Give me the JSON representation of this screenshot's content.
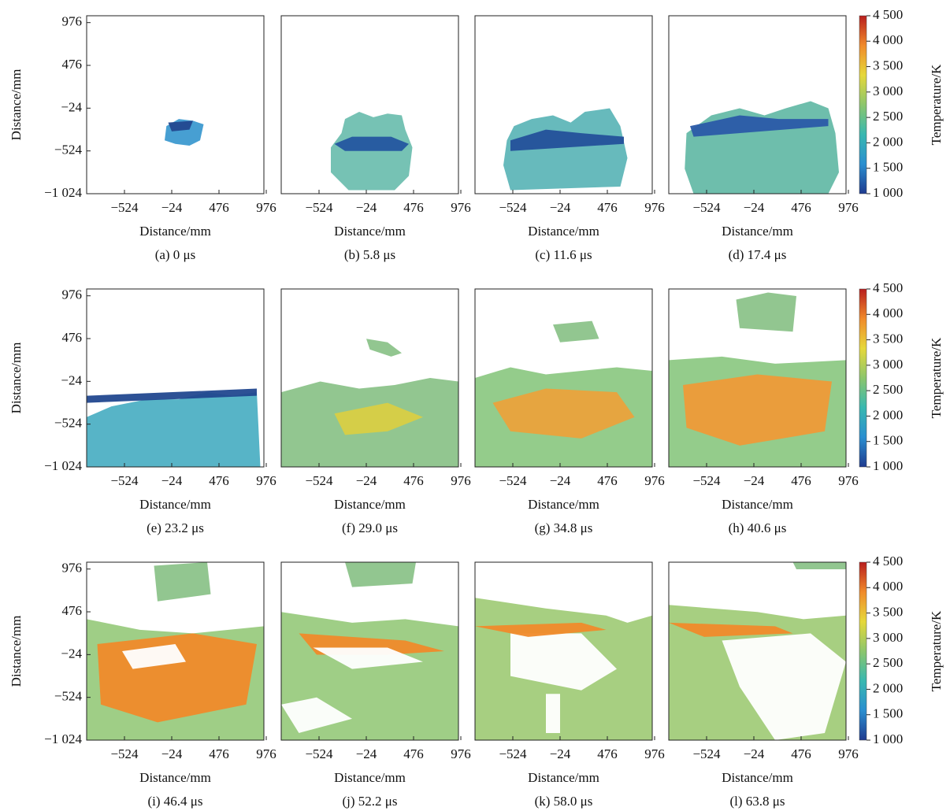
{
  "chart_data": [
    {
      "type": "heatmap",
      "caption": "(a) 0 μs",
      "xlabel": "Distance/mm",
      "ylabel": "Distance/mm",
      "xlim": [
        -924,
        951
      ],
      "xticks": [
        {
          "value": -524,
          "label": "−524"
        },
        {
          "value": -24,
          "label": "−24"
        },
        476,
        976
      ],
      "ylim": [
        -1024,
        1056
      ],
      "yticks": [
        {
          "value": -1024,
          "label": "−1 024"
        },
        {
          "value": -524,
          "label": "−524"
        },
        {
          "value": -24,
          "label": "−24"
        },
        476,
        976
      ]
    },
    {
      "type": "heatmap",
      "caption": "(b) 5.8 μs",
      "xlabel": "Distance/mm",
      "xlim": [
        -924,
        951
      ],
      "xticks": [
        {
          "value": -524,
          "label": "−524"
        },
        {
          "value": -24,
          "label": "−24"
        },
        476,
        976
      ],
      "ylim": [
        -1024,
        1056
      ]
    },
    {
      "type": "heatmap",
      "caption": "(c) 11.6 μs",
      "xlabel": "Distance/mm",
      "xlim": [
        -924,
        951
      ],
      "xticks": [
        {
          "value": -524,
          "label": "−524"
        },
        {
          "value": -24,
          "label": "−24"
        },
        476,
        976
      ],
      "ylim": [
        -1024,
        1056
      ]
    },
    {
      "type": "heatmap",
      "caption": "(d) 17.4 μs",
      "xlabel": "Distance/mm",
      "xlim": [
        -924,
        951
      ],
      "xticks": [
        {
          "value": -524,
          "label": "−524"
        },
        {
          "value": -24,
          "label": "−24"
        },
        476,
        976
      ],
      "ylim": [
        -1024,
        1056
      ],
      "colorbar": {
        "label": "Temperature/K",
        "lim": [
          1000,
          4500
        ],
        "colors": [
          "#1f3b8f",
          "#2a8fd0",
          "#38b8b0",
          "#8cc66c",
          "#e6d83a",
          "#f08a2a",
          "#b81e1e"
        ],
        "ticks": [
          {
            "value": 1000,
            "label": "1 000"
          },
          {
            "value": 1500,
            "label": "1 500"
          },
          {
            "value": 2000,
            "label": "2 000"
          },
          {
            "value": 2500,
            "label": "2 500"
          },
          {
            "value": 3000,
            "label": "3 000"
          },
          {
            "value": 3500,
            "label": "3 500"
          },
          {
            "value": 4000,
            "label": "4 000"
          },
          {
            "value": 4500,
            "label": "4 500"
          }
        ]
      }
    },
    {
      "type": "heatmap",
      "caption": "(e) 23.2 μs",
      "xlabel": "Distance/mm",
      "ylabel": "Distance/mm",
      "xlim": [
        -924,
        951
      ],
      "xticks": [
        {
          "value": -524,
          "label": "−524"
        },
        {
          "value": -24,
          "label": "−24"
        },
        476,
        976
      ],
      "ylim": [
        -1024,
        1056
      ],
      "yticks": [
        {
          "value": -1024,
          "label": "−1 024"
        },
        {
          "value": -524,
          "label": "−524"
        },
        {
          "value": -24,
          "label": "−24"
        },
        476,
        976
      ]
    },
    {
      "type": "heatmap",
      "caption": "(f) 29.0 μs",
      "xlabel": "Distance/mm",
      "xlim": [
        -924,
        951
      ],
      "xticks": [
        {
          "value": -524,
          "label": "−524"
        },
        {
          "value": -24,
          "label": "−24"
        },
        476,
        976
      ],
      "ylim": [
        -1024,
        1056
      ]
    },
    {
      "type": "heatmap",
      "caption": "(g) 34.8 μs",
      "xlabel": "Distance/mm",
      "xlim": [
        -924,
        951
      ],
      "xticks": [
        {
          "value": -524,
          "label": "−524"
        },
        {
          "value": -24,
          "label": "−24"
        },
        476,
        976
      ],
      "ylim": [
        -1024,
        1056
      ]
    },
    {
      "type": "heatmap",
      "caption": "(h) 40.6 μs",
      "xlabel": "Distance/mm",
      "xlim": [
        -924,
        951
      ],
      "xticks": [
        {
          "value": -524,
          "label": "−524"
        },
        {
          "value": -24,
          "label": "−24"
        },
        476,
        976
      ],
      "ylim": [
        -1024,
        1056
      ],
      "colorbar": {
        "label": "Temperature/K",
        "lim": [
          1000,
          4500
        ],
        "colors": [
          "#1f3b8f",
          "#2a8fd0",
          "#38b8b0",
          "#8cc66c",
          "#e6d83a",
          "#f08a2a",
          "#b81e1e"
        ],
        "ticks": [
          {
            "value": 1000,
            "label": "1 000"
          },
          {
            "value": 1500,
            "label": "1 500"
          },
          {
            "value": 2000,
            "label": "2 000"
          },
          {
            "value": 2500,
            "label": "2 500"
          },
          {
            "value": 3000,
            "label": "3 000"
          },
          {
            "value": 3500,
            "label": "3 500"
          },
          {
            "value": 4000,
            "label": "4 000"
          },
          {
            "value": 4500,
            "label": "4 500"
          }
        ]
      }
    },
    {
      "type": "heatmap",
      "caption": "(i) 46.4 μs",
      "xlabel": "Distance/mm",
      "ylabel": "Distance/mm",
      "xlim": [
        -924,
        951
      ],
      "xticks": [
        {
          "value": -524,
          "label": "−524"
        },
        {
          "value": -24,
          "label": "−24"
        },
        476,
        976
      ],
      "ylim": [
        -1024,
        1056
      ],
      "yticks": [
        {
          "value": -1024,
          "label": "−1 024"
        },
        {
          "value": -524,
          "label": "−524"
        },
        {
          "value": -24,
          "label": "−24"
        },
        476,
        976
      ]
    },
    {
      "type": "heatmap",
      "caption": "(j) 52.2 μs",
      "xlabel": "Distance/mm",
      "xlim": [
        -924,
        951
      ],
      "xticks": [
        {
          "value": -524,
          "label": "−524"
        },
        {
          "value": -24,
          "label": "−24"
        },
        476,
        976
      ],
      "ylim": [
        -1024,
        1056
      ]
    },
    {
      "type": "heatmap",
      "caption": "(k) 58.0 μs",
      "xlabel": "Distance/mm",
      "xlim": [
        -924,
        951
      ],
      "xticks": [
        {
          "value": -524,
          "label": "−524"
        },
        {
          "value": -24,
          "label": "−24"
        },
        476,
        976
      ],
      "ylim": [
        -1024,
        1056
      ]
    },
    {
      "type": "heatmap",
      "caption": "(l) 63.8 μs",
      "xlabel": "Distance/mm",
      "xlim": [
        -924,
        951
      ],
      "xticks": [
        {
          "value": -524,
          "label": "−524"
        },
        {
          "value": -24,
          "label": "−24"
        },
        476,
        976
      ],
      "ylim": [
        -1024,
        1056
      ],
      "colorbar": {
        "label": "Temperature/K",
        "lim": [
          1000,
          4500
        ],
        "colors": [
          "#1f3b8f",
          "#2a8fd0",
          "#38b8b0",
          "#8cc66c",
          "#e6d83a",
          "#f08a2a",
          "#b81e1e"
        ],
        "ticks": [
          {
            "value": 1000,
            "label": "1 000"
          },
          {
            "value": 1500,
            "label": "1 500"
          },
          {
            "value": 2000,
            "label": "2 000"
          },
          {
            "value": 2500,
            "label": "2 500"
          },
          {
            "value": 3000,
            "label": "3 000"
          },
          {
            "value": 3500,
            "label": "3 500"
          },
          {
            "value": 4000,
            "label": "4 000"
          },
          {
            "value": 4500,
            "label": "4 500"
          }
        ]
      }
    }
  ]
}
